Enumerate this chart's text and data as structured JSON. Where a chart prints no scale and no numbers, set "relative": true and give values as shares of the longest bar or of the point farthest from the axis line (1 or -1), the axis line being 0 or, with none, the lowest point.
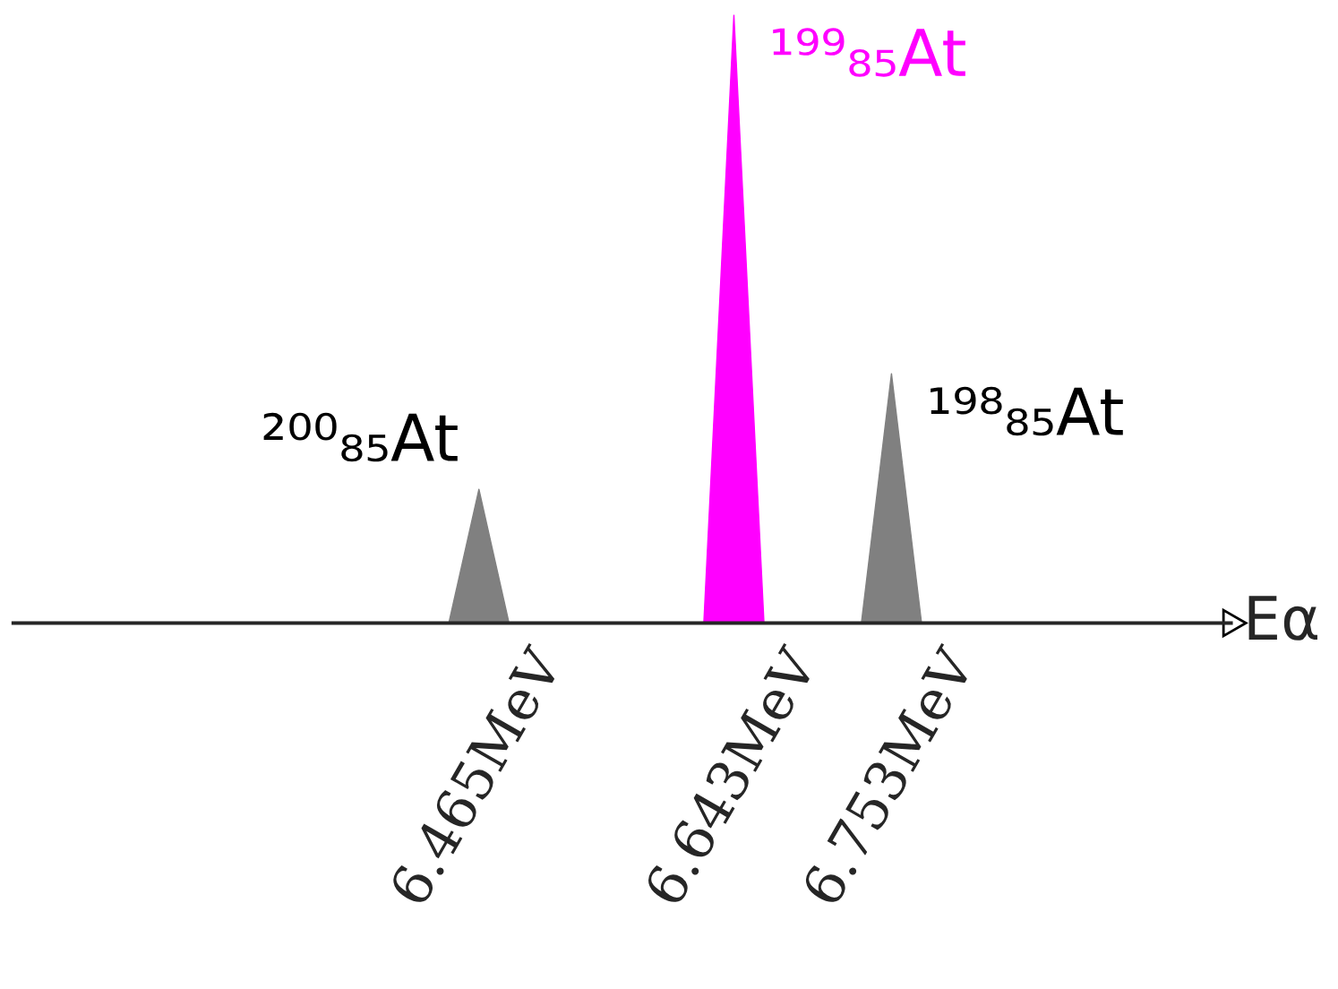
{
  "chart_data": {
    "type": "area",
    "relative": true,
    "xlabel": "Eα",
    "xlim": [
      6.14,
      6.99
    ],
    "xticks": [
      {
        "value": 6.465,
        "label": "6.465MeV"
      },
      {
        "value": 6.643,
        "label": "6.643MeV"
      },
      {
        "value": 6.753,
        "label": "6.753MeV"
      }
    ],
    "series": [
      {
        "color": "#808080",
        "x": [
          6.14,
          6.444,
          6.465,
          6.486,
          6.732,
          6.753,
          6.774,
          6.99
        ],
        "values": [
          0,
          0,
          0.22,
          0,
          0,
          0.41,
          0,
          0
        ]
      },
      {
        "color": "#ff00ff",
        "x": [
          6.622,
          6.643,
          6.664
        ],
        "values": [
          0,
          1,
          0
        ]
      }
    ],
    "annotations": [
      {
        "text": "²⁰⁰₈₅At",
        "x": 6.465,
        "y": 0.22
      },
      {
        "text": "¹⁹⁹₈₅At",
        "x": 6.643,
        "y": 1
      },
      {
        "text": "¹⁹⁸₈₅At",
        "x": 6.753,
        "y": 0.41
      }
    ],
    "grid": false,
    "legend": false
  }
}
